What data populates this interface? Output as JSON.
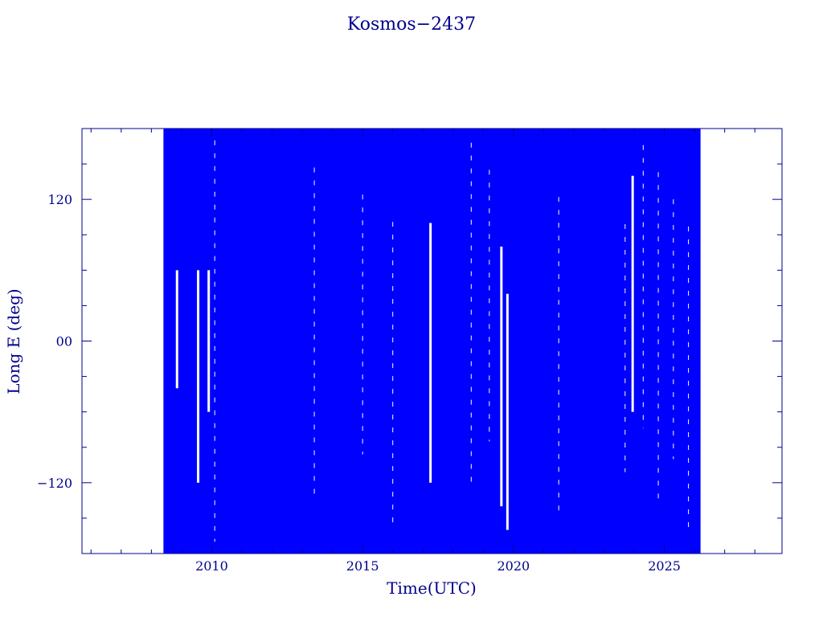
{
  "chart_data": {
    "type": "line",
    "title": "Kosmos−2437",
    "xlabel": "Time(UTC)",
    "ylabel": "Long E (deg)",
    "xlim": [
      2005.7,
      2028.9
    ],
    "ylim": [
      -180,
      180
    ],
    "x_ticks": [
      2010,
      2015,
      2020,
      2025
    ],
    "x_tick_labels": [
      "2010",
      "2015",
      "2020",
      "2025"
    ],
    "y_ticks": [
      -120,
      0,
      120
    ],
    "y_tick_labels": [
      "−120",
      "00",
      "120"
    ],
    "color": "#0000ff",
    "axis_color": "#00008b",
    "grid": false,
    "series": [
      {
        "description_free": true,
        "x_range": [
          2008.4,
          2026.2
        ],
        "y_range": [
          -180,
          180
        ],
        "gaps": [
          {
            "x": 2008.85,
            "y": [
              -40,
              60
            ]
          },
          {
            "x": 2009.55,
            "y": [
              -120,
              60
            ]
          },
          {
            "x": 2009.9,
            "y": [
              -60,
              60
            ]
          },
          {
            "x": 2017.25,
            "y": [
              -120,
              100
            ]
          },
          {
            "x": 2019.6,
            "y": [
              -140,
              80
            ]
          },
          {
            "x": 2019.8,
            "y": [
              -160,
              40
            ]
          },
          {
            "x": 2023.95,
            "y": [
              -60,
              140
            ]
          }
        ]
      }
    ]
  }
}
